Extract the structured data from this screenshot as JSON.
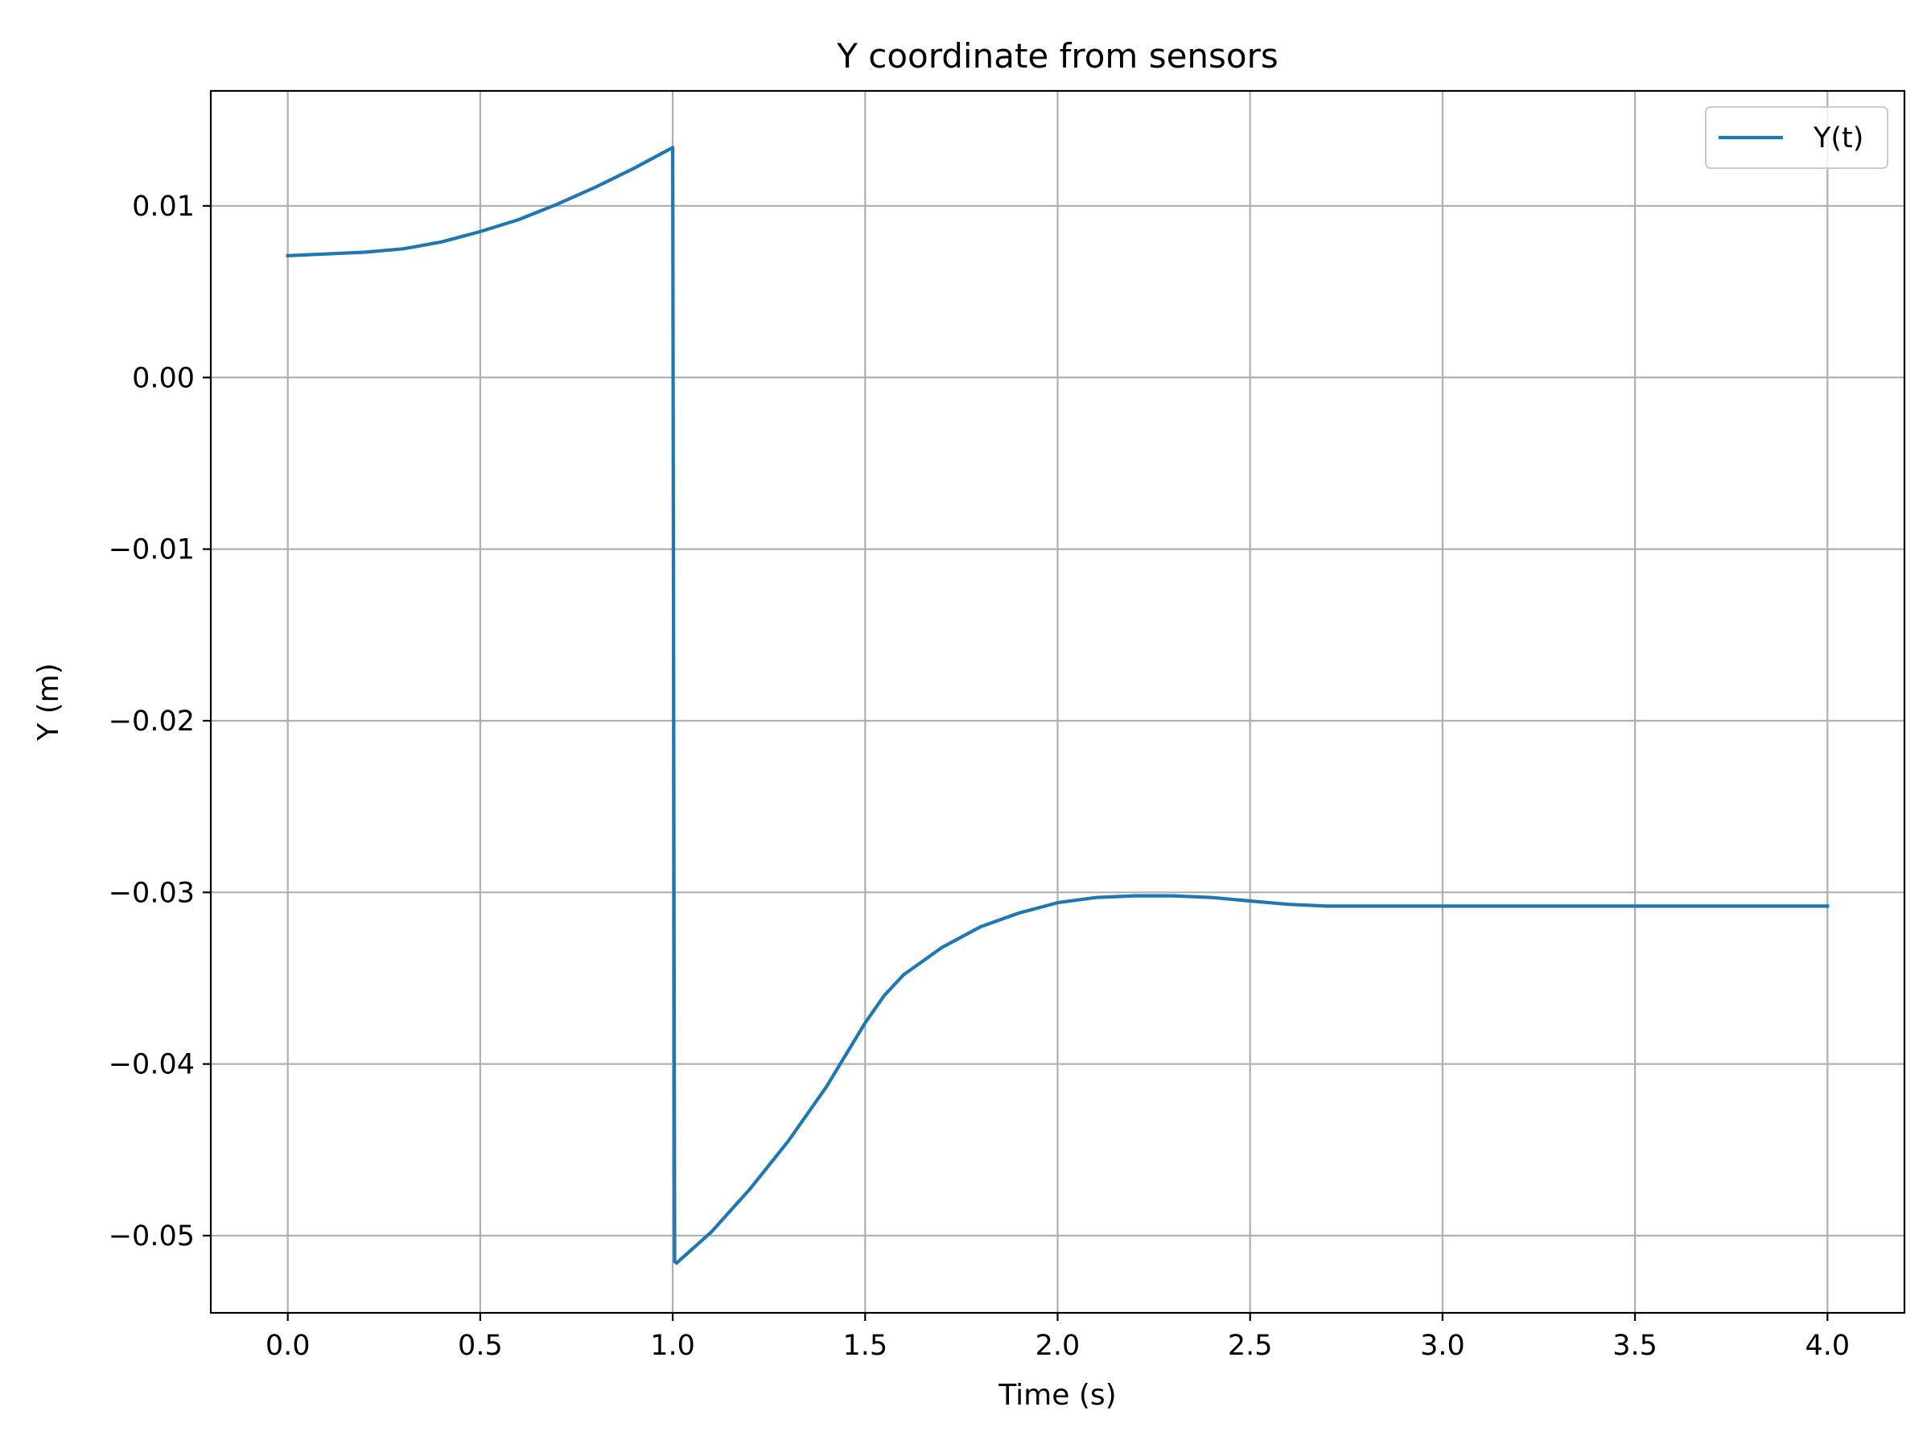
{
  "chart_data": {
    "type": "line",
    "title": "Y coordinate from sensors",
    "xlabel": "Time (s)",
    "ylabel": "Y (m)",
    "xlim": [
      -0.2,
      4.2
    ],
    "ylim": [
      -0.0545,
      0.0167
    ],
    "grid": true,
    "legend_position": "top-right",
    "x_ticks": [
      0.0,
      0.5,
      1.0,
      1.5,
      2.0,
      2.5,
      3.0,
      3.5,
      4.0
    ],
    "x_tick_labels": [
      "0.0",
      "0.5",
      "1.0",
      "1.5",
      "2.0",
      "2.5",
      "3.0",
      "3.5",
      "4.0"
    ],
    "y_ticks": [
      0.01,
      0.0,
      -0.01,
      -0.02,
      -0.03,
      -0.04,
      -0.05
    ],
    "y_tick_labels": [
      "0.01",
      "0.00",
      "−0.01",
      "−0.02",
      "−0.03",
      "−0.04",
      "−0.05"
    ],
    "series": [
      {
        "name": "Y(t)",
        "color": "#1f77b4",
        "x": [
          0.0,
          0.1,
          0.2,
          0.3,
          0.4,
          0.5,
          0.6,
          0.7,
          0.8,
          0.9,
          1.0,
          1.005,
          1.01,
          1.1,
          1.2,
          1.3,
          1.4,
          1.5,
          1.55,
          1.6,
          1.7,
          1.8,
          1.9,
          2.0,
          2.1,
          2.2,
          2.3,
          2.4,
          2.5,
          2.6,
          2.7,
          2.8,
          2.9,
          3.0,
          3.2,
          3.4,
          3.6,
          3.8,
          4.0
        ],
        "y": [
          0.0071,
          0.0072,
          0.0073,
          0.0075,
          0.0079,
          0.0085,
          0.0092,
          0.0101,
          0.0111,
          0.0122,
          0.0134,
          -0.0515,
          -0.0516,
          -0.0498,
          -0.0473,
          -0.0445,
          -0.0413,
          -0.0376,
          -0.036,
          -0.0348,
          -0.0332,
          -0.032,
          -0.0312,
          -0.0306,
          -0.0303,
          -0.0302,
          -0.0302,
          -0.0303,
          -0.0305,
          -0.0307,
          -0.0308,
          -0.0308,
          -0.0308,
          -0.0308,
          -0.0308,
          -0.0308,
          -0.0308,
          -0.0308,
          -0.0308
        ]
      }
    ]
  }
}
